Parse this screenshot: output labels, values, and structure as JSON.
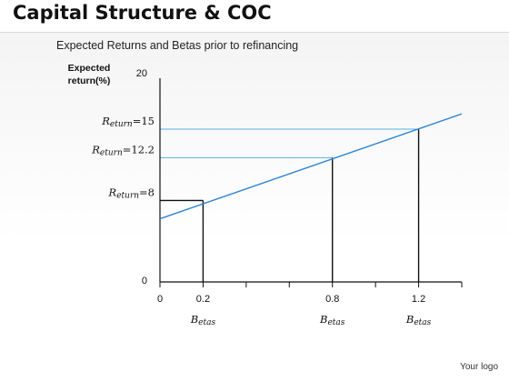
{
  "slide": {
    "title": "Capital Structure & COC",
    "logo": "Your logo"
  },
  "chart_data": {
    "type": "line",
    "title": "Expected Returns and Betas prior to refinancing",
    "ylabel_lines": [
      "Expected",
      "return(%)"
    ],
    "y_tick_labels": [
      "20",
      "0"
    ],
    "ylim": [
      0,
      20
    ],
    "xlim": [
      0,
      1.4
    ],
    "x_tick_values": [
      0,
      0.2,
      0.4,
      0.6,
      0.8,
      1.0,
      1.2,
      1.4
    ],
    "x_tick_labels": [
      {
        "x": 0,
        "label": "0"
      },
      {
        "x": 0.2,
        "label": "0.2"
      },
      {
        "x": 0.8,
        "label": "0.8"
      },
      {
        "x": 1.2,
        "label": "1.2"
      }
    ],
    "line": {
      "x": [
        0,
        1.4
      ],
      "y": [
        6.2,
        16.5
      ],
      "color": "#2e86d4"
    },
    "points": [
      {
        "beta": 0.2,
        "return": 8,
        "label_main": "R",
        "label_sub": "eturn",
        "label_value": "=8",
        "beta_main": "B",
        "beta_sub": "etas"
      },
      {
        "beta": 0.8,
        "return": 12.2,
        "label_main": "R",
        "label_sub": "eturn",
        "label_value": "=12.2",
        "beta_main": "B",
        "beta_sub": "etas"
      },
      {
        "beta": 1.2,
        "return": 15,
        "label_main": "R",
        "label_sub": "eturn",
        "label_value": "=15",
        "beta_main": "B",
        "beta_sub": "etas"
      }
    ],
    "colors": {
      "line": "#2e86d4",
      "guide_blue": "#55aee8",
      "guide_black": "#111111",
      "axis": "#111111"
    }
  }
}
